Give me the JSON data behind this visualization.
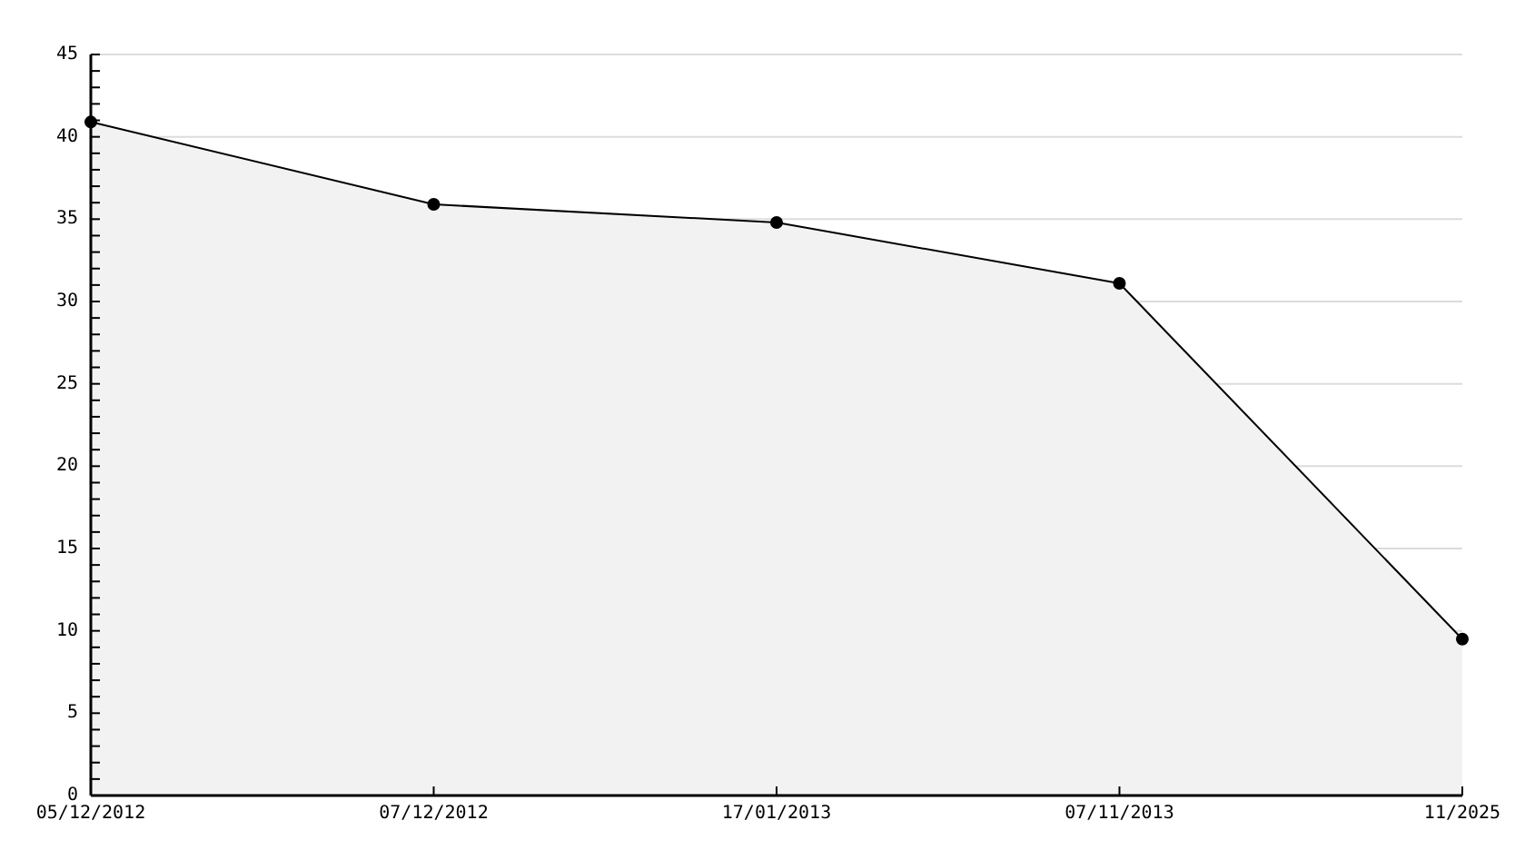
{
  "chart_data": {
    "type": "area",
    "categories": [
      "05/12/2012",
      "07/12/2012",
      "17/01/2013",
      "07/11/2013",
      "11/2025"
    ],
    "values": [
      40.9,
      35.9,
      34.8,
      31.1,
      9.5
    ],
    "color": "#000000",
    "ylim": [
      0,
      45
    ],
    "yticks": [
      0,
      {
        "value": 1,
        "label": null
      },
      {
        "value": 2,
        "label": null
      },
      {
        "value": 3,
        "label": null
      },
      {
        "value": 4,
        "label": null
      },
      5,
      {
        "value": 6,
        "label": null
      },
      {
        "value": 7,
        "label": null
      },
      {
        "value": 8,
        "label": null
      },
      {
        "value": 9,
        "label": null
      },
      10,
      {
        "value": 11,
        "label": null
      },
      {
        "value": 12,
        "label": null
      },
      {
        "value": 13,
        "label": null
      },
      {
        "value": 14,
        "label": null
      },
      15,
      {
        "value": 16,
        "label": null
      },
      {
        "value": 17,
        "label": null
      },
      {
        "value": 18,
        "label": null
      },
      {
        "value": 19,
        "label": null
      },
      20,
      {
        "value": 21,
        "label": null
      },
      {
        "value": 22,
        "label": null
      },
      {
        "value": 23,
        "label": null
      },
      {
        "value": 24,
        "label": null
      },
      25,
      {
        "value": 26,
        "label": null
      },
      {
        "value": 27,
        "label": null
      },
      {
        "value": 28,
        "label": null
      },
      {
        "value": 29,
        "label": null
      },
      30,
      {
        "value": 31,
        "label": null
      },
      {
        "value": 32,
        "label": null
      },
      {
        "value": 33,
        "label": null
      },
      {
        "value": 34,
        "label": null
      },
      35,
      {
        "value": 36,
        "label": null
      },
      {
        "value": 37,
        "label": null
      },
      {
        "value": 38,
        "label": null
      },
      {
        "value": 39,
        "label": null
      },
      40,
      {
        "value": 41,
        "label": null
      },
      {
        "value": 42,
        "label": null
      },
      {
        "value": 43,
        "label": null
      },
      {
        "value": 44,
        "label": null
      },
      45
    ],
    "grid": "y",
    "marker": "circle"
  }
}
